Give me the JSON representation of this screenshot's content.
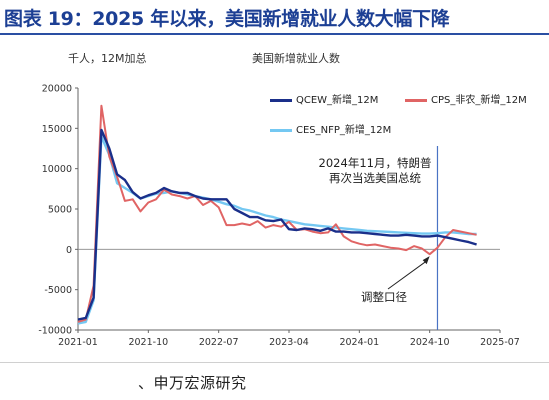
{
  "figure_title": "图表 19：2025 年以来，美国新增就业人数大幅下降",
  "source": "、申万宏源研究",
  "chart_data": {
    "type": "line",
    "unit_label": "千人，12M加总",
    "title": "美国新增就业人数",
    "xlabel": "",
    "ylabel": "",
    "ylim": [
      -10000,
      20000
    ],
    "yticks": [
      -10000,
      -5000,
      0,
      5000,
      10000,
      15000,
      20000
    ],
    "xtick_labels": [
      "2021-01",
      "2021-10",
      "2022-07",
      "2023-04",
      "2024-01",
      "2024-10",
      "2025-07"
    ],
    "x_range": [
      "2021-01",
      "2025-07"
    ],
    "grid": false,
    "legend_position": "top",
    "colors": {
      "qcew": "#1a2f8a",
      "cps": "#e06464",
      "ces": "#74c8f2",
      "guide": "#4a73c4"
    },
    "series": [
      {
        "name": "QCEW_新增_12M",
        "key": "qcew",
        "x": [
          "2021-01",
          "2021-02",
          "2021-03",
          "2021-04",
          "2021-05",
          "2021-06",
          "2021-07",
          "2021-08",
          "2021-09",
          "2021-10",
          "2021-11",
          "2021-12",
          "2022-01",
          "2022-02",
          "2022-03",
          "2022-04",
          "2022-05",
          "2022-06",
          "2022-07",
          "2022-08",
          "2022-09",
          "2022-10",
          "2022-11",
          "2022-12",
          "2023-01",
          "2023-02",
          "2023-03",
          "2023-04",
          "2023-05",
          "2023-06",
          "2023-07",
          "2023-08",
          "2023-09",
          "2023-10",
          "2023-11",
          "2023-12",
          "2024-01",
          "2024-02",
          "2024-03",
          "2024-04",
          "2024-05",
          "2024-06",
          "2024-07",
          "2024-08",
          "2024-09",
          "2024-10",
          "2024-11",
          "2024-12",
          "2025-01",
          "2025-02",
          "2025-03",
          "2025-04"
        ],
        "values": [
          -8700,
          -8500,
          -6000,
          14800,
          12500,
          9300,
          8600,
          7100,
          6300,
          6700,
          7000,
          7600,
          7200,
          7000,
          7000,
          6600,
          6300,
          6200,
          6200,
          6200,
          5000,
          4500,
          4000,
          4000,
          3600,
          3500,
          3700,
          2500,
          2400,
          2600,
          2500,
          2300,
          2600,
          2200,
          2200,
          2100,
          2100,
          2000,
          1900,
          1800,
          1700,
          1700,
          1800,
          1700,
          1600,
          1600,
          1700,
          1500,
          1300,
          1100,
          900,
          600
        ]
      },
      {
        "name": "CPS_非农_新增_12M",
        "key": "cps",
        "x": [
          "2021-01",
          "2021-02",
          "2021-03",
          "2021-04",
          "2021-05",
          "2021-06",
          "2021-07",
          "2021-08",
          "2021-09",
          "2021-10",
          "2021-11",
          "2021-12",
          "2022-01",
          "2022-02",
          "2022-03",
          "2022-04",
          "2022-05",
          "2022-06",
          "2022-07",
          "2022-08",
          "2022-09",
          "2022-10",
          "2022-11",
          "2022-12",
          "2023-01",
          "2023-02",
          "2023-03",
          "2023-04",
          "2023-05",
          "2023-06",
          "2023-07",
          "2023-08",
          "2023-09",
          "2023-10",
          "2023-11",
          "2023-12",
          "2024-01",
          "2024-02",
          "2024-03",
          "2024-04",
          "2024-05",
          "2024-06",
          "2024-07",
          "2024-08",
          "2024-09",
          "2024-10",
          "2024-11",
          "2024-12",
          "2025-01",
          "2025-02",
          "2025-03",
          "2025-04"
        ],
        "values": [
          -9000,
          -8700,
          -4500,
          17800,
          11500,
          9000,
          6000,
          6200,
          4700,
          5800,
          6200,
          7400,
          6800,
          6600,
          6300,
          6600,
          5500,
          6000,
          5200,
          3000,
          3000,
          3200,
          3000,
          3500,
          2700,
          3000,
          2800,
          3400,
          2400,
          2500,
          2200,
          2000,
          2100,
          3100,
          1600,
          1000,
          700,
          500,
          600,
          400,
          200,
          100,
          -100,
          400,
          100,
          -600,
          200,
          1500,
          2400,
          2200,
          2000,
          1800
        ]
      },
      {
        "name": "CES_NFP_新增_12M",
        "key": "ces",
        "x": [
          "2021-01",
          "2021-02",
          "2021-03",
          "2021-04",
          "2021-05",
          "2021-06",
          "2021-07",
          "2021-08",
          "2021-09",
          "2021-10",
          "2021-11",
          "2021-12",
          "2022-01",
          "2022-02",
          "2022-03",
          "2022-04",
          "2022-05",
          "2022-06",
          "2022-07",
          "2022-08",
          "2022-09",
          "2022-10",
          "2022-11",
          "2022-12",
          "2023-01",
          "2023-02",
          "2023-03",
          "2023-04",
          "2023-05",
          "2023-06",
          "2023-07",
          "2023-08",
          "2023-09",
          "2023-10",
          "2023-11",
          "2023-12",
          "2024-01",
          "2024-02",
          "2024-03",
          "2024-04",
          "2024-05",
          "2024-06",
          "2024-07",
          "2024-08",
          "2024-09",
          "2024-10",
          "2024-11",
          "2024-12",
          "2025-01",
          "2025-02",
          "2025-03",
          "2025-04"
        ],
        "values": [
          -9200,
          -9000,
          -6300,
          14000,
          11700,
          8200,
          7600,
          7000,
          6300,
          6600,
          6900,
          7000,
          7200,
          7000,
          6800,
          6600,
          6400,
          6200,
          5900,
          5600,
          5400,
          5000,
          4800,
          4500,
          4200,
          4000,
          3700,
          3500,
          3300,
          3100,
          3000,
          2900,
          2800,
          2700,
          2600,
          2500,
          2400,
          2300,
          2250,
          2200,
          2150,
          2100,
          2050,
          2000,
          1950,
          1950,
          2000,
          2100,
          2100,
          2000,
          1900,
          1900
        ]
      }
    ],
    "annotations": {
      "event_line1": "2024年11月，特朗普",
      "event_line2": "再次当选美国总统",
      "event_date": "2024-11",
      "adjust_label": "调整口径"
    }
  }
}
